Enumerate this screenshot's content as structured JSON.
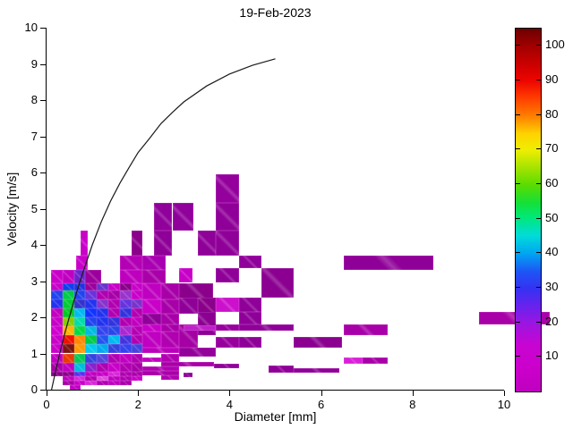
{
  "chart_data": {
    "type": "heatmap",
    "title": "19-Feb-2023",
    "xlabel": "Diameter [mm]",
    "ylabel": "Velocity [m/s]",
    "xlim": [
      0,
      10
    ],
    "ylim": [
      0,
      10
    ],
    "x_ticks": [
      0,
      2,
      4,
      6,
      8,
      10
    ],
    "y_ticks": [
      0,
      1,
      2,
      3,
      4,
      5,
      6,
      7,
      8,
      9,
      10
    ],
    "grid": false,
    "cells_format": "[d_min_mm, d_max_mm, v_min_ms, v_max_ms, color]",
    "cells": [
      [
        3.7,
        4.2,
        5.15,
        5.95,
        "#94009C"
      ],
      [
        3.7,
        4.2,
        4.4,
        5.15,
        "#8F0098"
      ],
      [
        2.35,
        2.75,
        4.4,
        5.15,
        "#90009A"
      ],
      [
        2.75,
        3.2,
        4.4,
        5.15,
        "#90009A"
      ],
      [
        2.35,
        2.75,
        3.7,
        4.4,
        "#8F0098"
      ],
      [
        1.85,
        2.1,
        3.7,
        4.4,
        "#8B008B"
      ],
      [
        3.3,
        3.7,
        3.7,
        4.4,
        "#8F0098"
      ],
      [
        3.7,
        4.2,
        3.7,
        4.4,
        "#8F0098"
      ],
      [
        0.75,
        0.9,
        3.7,
        4.4,
        "#C800C8"
      ],
      [
        0.65,
        0.9,
        3.3,
        3.7,
        "#C800C8"
      ],
      [
        1.6,
        2.1,
        3.3,
        3.7,
        "#B400B4"
      ],
      [
        2.1,
        2.6,
        3.3,
        3.7,
        "#A800B0"
      ],
      [
        6.5,
        8.45,
        3.3,
        3.7,
        "#8F0098"
      ],
      [
        4.2,
        4.7,
        3.35,
        3.7,
        "#90009A"
      ],
      [
        4.7,
        5.4,
        2.55,
        3.35,
        "#8B0090"
      ],
      [
        3.7,
        4.2,
        2.95,
        3.35,
        "#8F0098"
      ],
      [
        2.9,
        3.2,
        2.95,
        3.35,
        "#C800C8"
      ],
      [
        0.1,
        0.35,
        2.95,
        3.3,
        "#C800C8"
      ],
      [
        0.35,
        0.6,
        2.95,
        3.3,
        "#C000C0"
      ],
      [
        0.6,
        0.85,
        2.95,
        3.3,
        "#6A22CC"
      ],
      [
        0.85,
        1.2,
        2.95,
        3.3,
        "#9C009C"
      ],
      [
        1.6,
        2.1,
        2.95,
        3.3,
        "#BE00BE"
      ],
      [
        2.1,
        2.6,
        2.95,
        3.3,
        "#AA00AA"
      ],
      [
        0.1,
        0.35,
        2.75,
        2.95,
        "#C800C8"
      ],
      [
        0.35,
        0.6,
        2.75,
        2.95,
        "#1040EE"
      ],
      [
        0.6,
        0.85,
        2.75,
        2.95,
        "#2233DD"
      ],
      [
        0.85,
        1.1,
        2.75,
        2.95,
        "#9A009A"
      ],
      [
        1.1,
        1.35,
        2.75,
        2.95,
        "#6633CC"
      ],
      [
        1.35,
        1.6,
        2.75,
        2.95,
        "#C800C8"
      ],
      [
        1.6,
        1.85,
        2.75,
        2.95,
        "#8B008B"
      ],
      [
        1.85,
        2.1,
        2.75,
        2.95,
        "#C800C8"
      ],
      [
        2.1,
        2.5,
        2.5,
        2.95,
        "#C000C0"
      ],
      [
        2.5,
        2.9,
        2.5,
        2.95,
        "#A800A8"
      ],
      [
        2.9,
        3.65,
        2.5,
        2.95,
        "#8B008B"
      ],
      [
        0.1,
        0.35,
        2.5,
        2.75,
        "#2244EE"
      ],
      [
        0.35,
        0.6,
        2.5,
        2.75,
        "#00CC44"
      ],
      [
        0.6,
        0.85,
        2.5,
        2.75,
        "#2244EE"
      ],
      [
        0.85,
        1.1,
        2.5,
        2.75,
        "#6633DD"
      ],
      [
        1.1,
        1.35,
        2.5,
        2.75,
        "#B000B0"
      ],
      [
        1.35,
        1.6,
        2.5,
        2.75,
        "#A800A8"
      ],
      [
        1.6,
        1.85,
        2.5,
        2.75,
        "#9933CC"
      ],
      [
        1.85,
        2.1,
        2.5,
        2.75,
        "#C800C8"
      ],
      [
        0.1,
        0.35,
        2.25,
        2.5,
        "#2233EE"
      ],
      [
        0.35,
        0.6,
        2.25,
        2.5,
        "#00CC33"
      ],
      [
        0.6,
        0.85,
        2.25,
        2.5,
        "#3333CC"
      ],
      [
        0.85,
        1.1,
        2.25,
        2.5,
        "#2233EE"
      ],
      [
        1.1,
        1.35,
        2.25,
        2.5,
        "#8833CC"
      ],
      [
        1.35,
        1.6,
        2.25,
        2.5,
        "#B000B0"
      ],
      [
        1.6,
        1.85,
        2.25,
        2.5,
        "#6633DD"
      ],
      [
        1.85,
        2.1,
        2.25,
        2.5,
        "#7733CC"
      ],
      [
        2.1,
        2.5,
        2.1,
        2.5,
        "#C800C8"
      ],
      [
        2.5,
        2.9,
        2.1,
        2.5,
        "#A800A8"
      ],
      [
        2.9,
        3.3,
        2.1,
        2.55,
        "#8F0098"
      ],
      [
        3.3,
        3.7,
        2.1,
        2.55,
        "#8B008B"
      ],
      [
        3.7,
        4.2,
        2.15,
        2.55,
        "#CC10CC"
      ],
      [
        4.2,
        4.7,
        2.15,
        2.55,
        "#8F0098"
      ],
      [
        0.1,
        0.35,
        2.0,
        2.25,
        "#C000C0"
      ],
      [
        0.35,
        0.6,
        2.0,
        2.25,
        "#00CC22"
      ],
      [
        0.6,
        0.85,
        2.0,
        2.25,
        "#00BBEE"
      ],
      [
        0.85,
        1.1,
        2.0,
        2.25,
        "#1133FF"
      ],
      [
        1.1,
        1.35,
        2.0,
        2.25,
        "#2233EE"
      ],
      [
        1.35,
        1.6,
        2.0,
        2.25,
        "#B000B0"
      ],
      [
        1.6,
        1.85,
        2.0,
        2.25,
        "#3333DD"
      ],
      [
        1.85,
        2.1,
        2.0,
        2.25,
        "#B000B0"
      ],
      [
        2.1,
        2.5,
        1.8,
        2.1,
        "#8F0098"
      ],
      [
        2.5,
        2.9,
        1.8,
        2.1,
        "#A800A8"
      ],
      [
        3.3,
        3.7,
        1.5,
        2.15,
        "#8B0090"
      ],
      [
        4.2,
        4.7,
        1.8,
        2.15,
        "#8F0098"
      ],
      [
        0.1,
        0.35,
        1.75,
        2.0,
        "#C800C8"
      ],
      [
        0.35,
        0.6,
        1.75,
        2.0,
        "#88CC00"
      ],
      [
        0.6,
        0.85,
        1.75,
        2.0,
        "#00DDAA"
      ],
      [
        0.85,
        1.1,
        1.75,
        2.0,
        "#2244EE"
      ],
      [
        1.1,
        1.35,
        1.75,
        2.0,
        "#2233EE"
      ],
      [
        1.35,
        1.6,
        1.75,
        2.0,
        "#3333DD"
      ],
      [
        1.6,
        1.85,
        1.75,
        2.0,
        "#B000B0"
      ],
      [
        1.85,
        2.1,
        1.75,
        2.0,
        "#C000C0"
      ],
      [
        0.1,
        0.35,
        1.5,
        1.75,
        "#D000D0"
      ],
      [
        0.35,
        0.6,
        1.5,
        1.75,
        "#FFB400"
      ],
      [
        0.6,
        0.85,
        1.5,
        1.75,
        "#00DD44"
      ],
      [
        0.85,
        1.1,
        1.5,
        1.75,
        "#00BBDD"
      ],
      [
        1.1,
        1.35,
        1.5,
        1.75,
        "#3344EE"
      ],
      [
        1.35,
        1.6,
        1.5,
        1.75,
        "#2947E8"
      ],
      [
        1.6,
        1.85,
        1.5,
        1.75,
        "#A928D2"
      ],
      [
        1.85,
        2.1,
        1.5,
        1.75,
        "#B400B4"
      ],
      [
        2.1,
        2.5,
        1.6,
        1.8,
        "#C800C8"
      ],
      [
        2.5,
        2.9,
        1.6,
        1.8,
        "#A800A8"
      ],
      [
        2.9,
        3.3,
        1.15,
        1.8,
        "#A400A4"
      ],
      [
        3.0,
        3.7,
        1.63,
        1.79,
        "#C020C8"
      ],
      [
        3.7,
        4.2,
        1.63,
        1.8,
        "#98009E"
      ],
      [
        4.2,
        5.4,
        1.63,
        1.8,
        "#8F0098"
      ],
      [
        6.5,
        7.45,
        1.5,
        1.8,
        "#A800A8"
      ],
      [
        0.1,
        0.35,
        1.25,
        1.5,
        "#C800C8"
      ],
      [
        0.35,
        0.6,
        1.25,
        1.5,
        "#EE1100"
      ],
      [
        0.6,
        0.85,
        1.25,
        1.5,
        "#FF8800"
      ],
      [
        0.85,
        1.1,
        1.25,
        1.5,
        "#00CC44"
      ],
      [
        1.1,
        1.35,
        1.25,
        1.5,
        "#2255EE"
      ],
      [
        1.35,
        1.6,
        1.25,
        1.5,
        "#00BBEE"
      ],
      [
        1.6,
        1.85,
        1.25,
        1.5,
        "#4433DD"
      ],
      [
        1.85,
        2.1,
        1.25,
        1.5,
        "#B000B0"
      ],
      [
        2.1,
        2.5,
        1.15,
        1.6,
        "#C000C0"
      ],
      [
        2.5,
        2.9,
        1.15,
        1.6,
        "#B000B0"
      ],
      [
        3.7,
        4.2,
        1.15,
        1.45,
        "#98009E"
      ],
      [
        4.2,
        4.7,
        1.15,
        1.45,
        "#8F0098"
      ],
      [
        5.4,
        6.45,
        1.15,
        1.45,
        "#8B0090"
      ],
      [
        0.1,
        0.35,
        1.0,
        1.25,
        "#C800C8"
      ],
      [
        0.35,
        0.6,
        1.0,
        1.25,
        "#7A1510"
      ],
      [
        0.6,
        0.85,
        1.0,
        1.25,
        "#FF9900"
      ],
      [
        0.85,
        1.1,
        1.0,
        1.25,
        "#00CCEE"
      ],
      [
        1.1,
        1.35,
        1.0,
        1.25,
        "#00AAEE"
      ],
      [
        1.35,
        1.6,
        1.0,
        1.25,
        "#3344DD"
      ],
      [
        1.6,
        1.85,
        1.0,
        1.25,
        "#3344EE"
      ],
      [
        1.85,
        2.1,
        1.0,
        1.25,
        "#4444DD"
      ],
      [
        2.1,
        2.9,
        1.0,
        1.15,
        "#BB00BB"
      ],
      [
        2.9,
        3.7,
        0.9,
        1.15,
        "#94009A"
      ],
      [
        0.1,
        0.35,
        0.75,
        1.0,
        "#C000C0"
      ],
      [
        0.35,
        0.6,
        0.75,
        1.0,
        "#E83C00"
      ],
      [
        0.6,
        0.85,
        0.75,
        1.0,
        "#00CC55"
      ],
      [
        0.85,
        1.1,
        0.75,
        1.0,
        "#3344DD"
      ],
      [
        1.1,
        1.35,
        0.75,
        1.0,
        "#5544DD"
      ],
      [
        1.35,
        1.6,
        0.75,
        1.0,
        "#B000B0"
      ],
      [
        1.6,
        1.85,
        0.75,
        1.0,
        "#C000C0"
      ],
      [
        1.85,
        2.1,
        0.75,
        1.0,
        "#B000B0"
      ],
      [
        2.1,
        2.5,
        0.77,
        0.9,
        "#C000C0"
      ],
      [
        2.5,
        2.9,
        0.77,
        1.0,
        "#B000B0"
      ],
      [
        6.5,
        6.9,
        0.72,
        0.9,
        "#D820D8"
      ],
      [
        6.9,
        7.45,
        0.72,
        0.9,
        "#A800A8"
      ],
      [
        0.1,
        0.35,
        0.5,
        0.75,
        "#A800A8"
      ],
      [
        0.35,
        0.6,
        0.5,
        0.75,
        "#C000C0"
      ],
      [
        0.6,
        0.85,
        0.5,
        0.75,
        "#00BBDD"
      ],
      [
        0.85,
        1.1,
        0.5,
        0.75,
        "#8822CC"
      ],
      [
        1.1,
        1.35,
        0.5,
        0.75,
        "#B000B0"
      ],
      [
        1.35,
        1.6,
        0.5,
        0.75,
        "#C800C8"
      ],
      [
        1.6,
        1.85,
        0.5,
        0.75,
        "#B000B0"
      ],
      [
        1.85,
        2.1,
        0.5,
        0.75,
        "#A800A8"
      ],
      [
        2.5,
        3.65,
        0.64,
        0.77,
        "#A800A8"
      ],
      [
        2.1,
        2.9,
        0.52,
        0.64,
        "#B000B0"
      ],
      [
        4.85,
        5.4,
        0.48,
        0.66,
        "#8F0098"
      ],
      [
        5.4,
        6.4,
        0.48,
        0.6,
        "#8F0098"
      ],
      [
        3.65,
        4.2,
        0.6,
        0.72,
        "#8F0098"
      ],
      [
        3.0,
        3.2,
        0.35,
        0.48,
        "#8F0098"
      ],
      [
        0.1,
        0.35,
        0.375,
        0.5,
        "#8B008B"
      ],
      [
        0.35,
        0.6,
        0.375,
        0.5,
        "#8B008B"
      ],
      [
        0.6,
        0.85,
        0.375,
        0.5,
        "#5533EE"
      ],
      [
        0.85,
        1.1,
        0.375,
        0.5,
        "#C000C0"
      ],
      [
        1.1,
        1.35,
        0.375,
        0.5,
        "#C800C8"
      ],
      [
        1.35,
        1.6,
        0.375,
        0.5,
        "#D828D8"
      ],
      [
        1.6,
        1.85,
        0.375,
        0.5,
        "#B000B0"
      ],
      [
        1.85,
        2.1,
        0.375,
        0.5,
        "#A800A8"
      ],
      [
        2.1,
        2.9,
        0.4,
        0.52,
        "#A800A8"
      ],
      [
        0.35,
        0.6,
        0.25,
        0.375,
        "#C000C0"
      ],
      [
        0.6,
        0.85,
        0.25,
        0.375,
        "#D828D8"
      ],
      [
        0.85,
        1.1,
        0.25,
        0.375,
        "#B000B0"
      ],
      [
        1.1,
        1.35,
        0.25,
        0.375,
        "#E04AE0"
      ],
      [
        1.35,
        1.6,
        0.25,
        0.375,
        "#C000C0"
      ],
      [
        1.6,
        1.85,
        0.25,
        0.375,
        "#B000B0"
      ],
      [
        1.85,
        2.1,
        0.25,
        0.375,
        "#C800C8"
      ],
      [
        2.5,
        2.9,
        0.27,
        0.4,
        "#B000B0"
      ],
      [
        0.35,
        0.6,
        0.125,
        0.25,
        "#A800A8"
      ],
      [
        0.6,
        0.85,
        0.125,
        0.25,
        "#C800C8"
      ],
      [
        0.85,
        1.1,
        0.125,
        0.25,
        "#D828D8"
      ],
      [
        1.1,
        1.35,
        0.125,
        0.25,
        "#B000B0"
      ],
      [
        1.35,
        1.6,
        0.125,
        0.25,
        "#C000C0"
      ],
      [
        1.6,
        1.85,
        0.125,
        0.25,
        "#A800A8"
      ],
      [
        0.5,
        0.75,
        0.0,
        0.125,
        "#C000C0"
      ],
      [
        9.45,
        11.0,
        1.8,
        2.15,
        "#A800A8"
      ]
    ],
    "curve": {
      "name": "terminal-velocity-curve",
      "color": "#1a1a1a",
      "points": [
        [
          0.11,
          0
        ],
        [
          0.2,
          0.52
        ],
        [
          0.3,
          1.06
        ],
        [
          0.4,
          1.56
        ],
        [
          0.5,
          2.02
        ],
        [
          0.6,
          2.46
        ],
        [
          0.7,
          2.87
        ],
        [
          0.8,
          3.26
        ],
        [
          0.9,
          3.63
        ],
        [
          1.0,
          4.0
        ],
        [
          1.2,
          4.65
        ],
        [
          1.4,
          5.21
        ],
        [
          1.6,
          5.7
        ],
        [
          1.8,
          6.13
        ],
        [
          2.0,
          6.55
        ],
        [
          2.25,
          6.94
        ],
        [
          2.5,
          7.35
        ],
        [
          2.75,
          7.66
        ],
        [
          3.0,
          7.95
        ],
        [
          3.5,
          8.39
        ],
        [
          4.0,
          8.72
        ],
        [
          4.5,
          8.96
        ],
        [
          5.0,
          9.14
        ]
      ]
    },
    "colorbar": {
      "ticks": [
        10,
        20,
        30,
        40,
        50,
        60,
        70,
        80,
        90,
        100
      ],
      "vmin": 0,
      "vmax": 105,
      "stops": [
        [
          0.0,
          "#BF00BF"
        ],
        [
          0.07,
          "#CC00CC"
        ],
        [
          0.13,
          "#C705D2"
        ],
        [
          0.19,
          "#9916E2"
        ],
        [
          0.24,
          "#6423EE"
        ],
        [
          0.285,
          "#3333F2"
        ],
        [
          0.33,
          "#1E55F5"
        ],
        [
          0.38,
          "#00A5F2"
        ],
        [
          0.43,
          "#00DCD8"
        ],
        [
          0.48,
          "#00E878"
        ],
        [
          0.52,
          "#14E038"
        ],
        [
          0.57,
          "#5CDC00"
        ],
        [
          0.62,
          "#AAE400"
        ],
        [
          0.665,
          "#EEEE00"
        ],
        [
          0.71,
          "#FFD300"
        ],
        [
          0.76,
          "#FF7D00"
        ],
        [
          0.81,
          "#FF3C00"
        ],
        [
          0.855,
          "#EE0500"
        ],
        [
          0.9,
          "#CC0000"
        ],
        [
          0.95,
          "#A30000"
        ],
        [
          1.0,
          "#6E0000"
        ]
      ]
    }
  }
}
